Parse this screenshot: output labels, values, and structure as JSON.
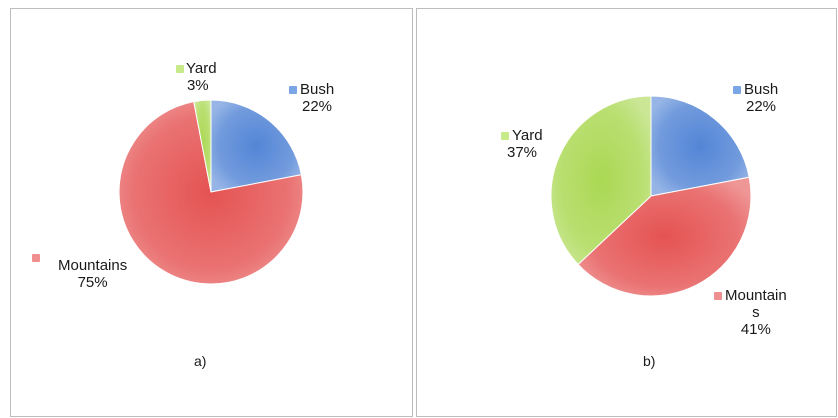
{
  "colors": {
    "bush": "#4a7fd4",
    "mountains": "#e44a4a",
    "yard": "#a6d64a"
  },
  "chart_data": [
    {
      "type": "pie",
      "caption": "a)",
      "slices": [
        {
          "label": "Bush",
          "value": 22,
          "percent_label": "22%"
        },
        {
          "label": "Mountains",
          "value": 75,
          "percent_label": "75%"
        },
        {
          "label": "Yard",
          "value": 3,
          "percent_label": "3%"
        }
      ]
    },
    {
      "type": "pie",
      "caption": "b)",
      "slices": [
        {
          "label": "Bush",
          "value": 22,
          "percent_label": "22%"
        },
        {
          "label": "Mountains",
          "value": 41,
          "percent_label": "41%"
        },
        {
          "label": "Yard",
          "value": 37,
          "percent_label": "37%"
        }
      ]
    }
  ],
  "chart_b_mountains_label": {
    "line1": "Mountain",
    "line2": "s"
  }
}
